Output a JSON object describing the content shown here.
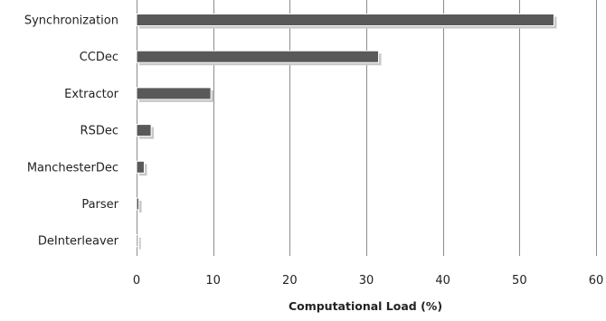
{
  "chart_data": {
    "type": "bar",
    "orientation": "horizontal",
    "categories": [
      "Synchronization",
      "CCDec",
      "Extractor",
      "RSDec",
      "ManchesterDec",
      "Parser",
      "DeInterleaver"
    ],
    "values": [
      54.5,
      31.6,
      9.7,
      1.9,
      1.0,
      0.3,
      0.2
    ],
    "xlabel": "Computational Load (%)",
    "ylabel": "",
    "xlim": [
      0,
      60
    ],
    "xticks": [
      0,
      10,
      20,
      30,
      40,
      50,
      60
    ],
    "grid": "vertical",
    "legend": "none",
    "colors": {
      "bar": "#595959",
      "bar_shadow": "#c8c8c8",
      "grid": "#8c8c8c",
      "text": "#222222"
    }
  }
}
